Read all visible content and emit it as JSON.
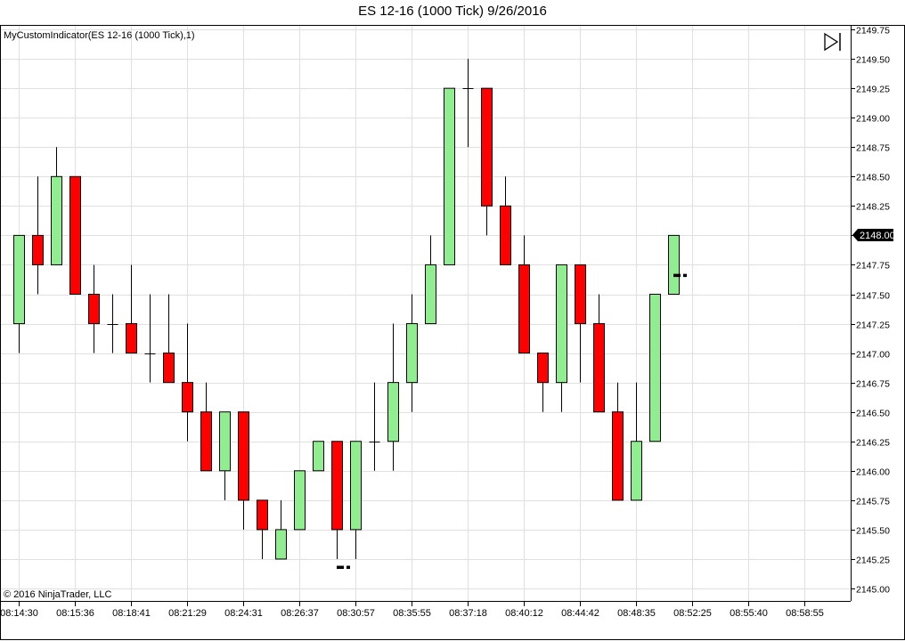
{
  "window": {
    "title": "ES 12-16 (1000 Tick)  9/26/2016"
  },
  "indicator_label": "MyCustomIndicator(ES 12-16 (1000 Tick),1)",
  "copyright": "© 2016 NinjaTrader, LLC",
  "colors": {
    "up": "#90EE90",
    "down": "#FF0000",
    "outline": "#000000",
    "grid": "#E0E0E0",
    "marker": "#000000"
  },
  "icons": {
    "scroll_end": "skip-to-end-icon"
  },
  "chart_data": {
    "type": "candlestick",
    "title": "ES 12-16 (1000 Tick)  9/26/2016",
    "ylim": [
      2144.95,
      2149.8
    ],
    "y_ticks": [
      "2145.00",
      "2145.25",
      "2145.50",
      "2145.75",
      "2146.00",
      "2146.25",
      "2146.50",
      "2146.75",
      "2147.00",
      "2147.25",
      "2147.50",
      "2147.75",
      "2148.00",
      "2148.25",
      "2148.50",
      "2148.75",
      "2149.00",
      "2149.25",
      "2149.50",
      "2149.75"
    ],
    "x_ticks": [
      "08:14:30",
      "08:15:36",
      "08:18:41",
      "08:21:29",
      "08:24:31",
      "08:26:37",
      "08:30:57",
      "08:35:55",
      "08:37:18",
      "08:40:12",
      "08:44:42",
      "08:48:35",
      "08:52:25",
      "08:55:40",
      "08:58:55"
    ],
    "last_price": "2148.00",
    "grid": true,
    "candles": [
      {
        "o": 2147.25,
        "h": 2148.0,
        "l": 2147.0,
        "c": 2148.0
      },
      {
        "o": 2148.0,
        "h": 2148.5,
        "l": 2147.5,
        "c": 2147.75
      },
      {
        "o": 2147.75,
        "h": 2148.75,
        "l": 2147.75,
        "c": 2148.5
      },
      {
        "o": 2148.5,
        "h": 2148.5,
        "l": 2147.5,
        "c": 2147.5
      },
      {
        "o": 2147.5,
        "h": 2147.75,
        "l": 2147.0,
        "c": 2147.25
      },
      {
        "o": 2147.25,
        "h": 2147.5,
        "l": 2147.0,
        "c": 2147.25
      },
      {
        "o": 2147.25,
        "h": 2147.75,
        "l": 2147.0,
        "c": 2147.0
      },
      {
        "o": 2147.0,
        "h": 2147.5,
        "l": 2146.75,
        "c": 2147.0
      },
      {
        "o": 2147.0,
        "h": 2147.5,
        "l": 2146.75,
        "c": 2146.75
      },
      {
        "o": 2146.75,
        "h": 2147.25,
        "l": 2146.25,
        "c": 2146.5
      },
      {
        "o": 2146.5,
        "h": 2146.75,
        "l": 2146.0,
        "c": 2146.0
      },
      {
        "o": 2146.0,
        "h": 2146.5,
        "l": 2145.75,
        "c": 2146.5
      },
      {
        "o": 2146.5,
        "h": 2146.5,
        "l": 2145.5,
        "c": 2145.75
      },
      {
        "o": 2145.75,
        "h": 2145.75,
        "l": 2145.25,
        "c": 2145.5
      },
      {
        "o": 2145.25,
        "h": 2145.75,
        "l": 2145.25,
        "c": 2145.5
      },
      {
        "o": 2145.5,
        "h": 2146.0,
        "l": 2145.5,
        "c": 2146.0
      },
      {
        "o": 2146.0,
        "h": 2146.25,
        "l": 2146.0,
        "c": 2146.25
      },
      {
        "o": 2146.25,
        "h": 2146.25,
        "l": 2145.25,
        "c": 2145.5
      },
      {
        "o": 2145.5,
        "h": 2146.25,
        "l": 2145.25,
        "c": 2146.25
      },
      {
        "o": 2146.25,
        "h": 2146.75,
        "l": 2146.0,
        "c": 2146.25
      },
      {
        "o": 2146.25,
        "h": 2147.25,
        "l": 2146.0,
        "c": 2146.75
      },
      {
        "o": 2146.75,
        "h": 2147.5,
        "l": 2146.5,
        "c": 2147.25
      },
      {
        "o": 2147.25,
        "h": 2148.0,
        "l": 2147.25,
        "c": 2147.75
      },
      {
        "o": 2147.75,
        "h": 2149.25,
        "l": 2147.75,
        "c": 2149.25
      },
      {
        "o": 2149.25,
        "h": 2149.5,
        "l": 2148.75,
        "c": 2149.25
      },
      {
        "o": 2149.25,
        "h": 2149.25,
        "l": 2148.0,
        "c": 2148.25
      },
      {
        "o": 2148.25,
        "h": 2148.5,
        "l": 2147.75,
        "c": 2147.75
      },
      {
        "o": 2147.75,
        "h": 2148.0,
        "l": 2147.0,
        "c": 2147.0
      },
      {
        "o": 2147.0,
        "h": 2147.0,
        "l": 2146.5,
        "c": 2146.75
      },
      {
        "o": 2146.75,
        "h": 2147.75,
        "l": 2146.5,
        "c": 2147.75
      },
      {
        "o": 2147.75,
        "h": 2147.75,
        "l": 2146.75,
        "c": 2147.25
      },
      {
        "o": 2147.25,
        "h": 2147.5,
        "l": 2146.5,
        "c": 2146.5
      },
      {
        "o": 2146.5,
        "h": 2146.75,
        "l": 2145.75,
        "c": 2145.75
      },
      {
        "o": 2145.75,
        "h": 2146.75,
        "l": 2145.75,
        "c": 2146.25
      },
      {
        "o": 2146.25,
        "h": 2147.5,
        "l": 2146.25,
        "c": 2147.5
      },
      {
        "o": 2147.5,
        "h": 2148.0,
        "l": 2147.5,
        "c": 2148.0
      }
    ],
    "markers": [
      {
        "bar": 17,
        "value": 2145.18
      },
      {
        "bar": 35,
        "value": 2147.66
      }
    ]
  }
}
